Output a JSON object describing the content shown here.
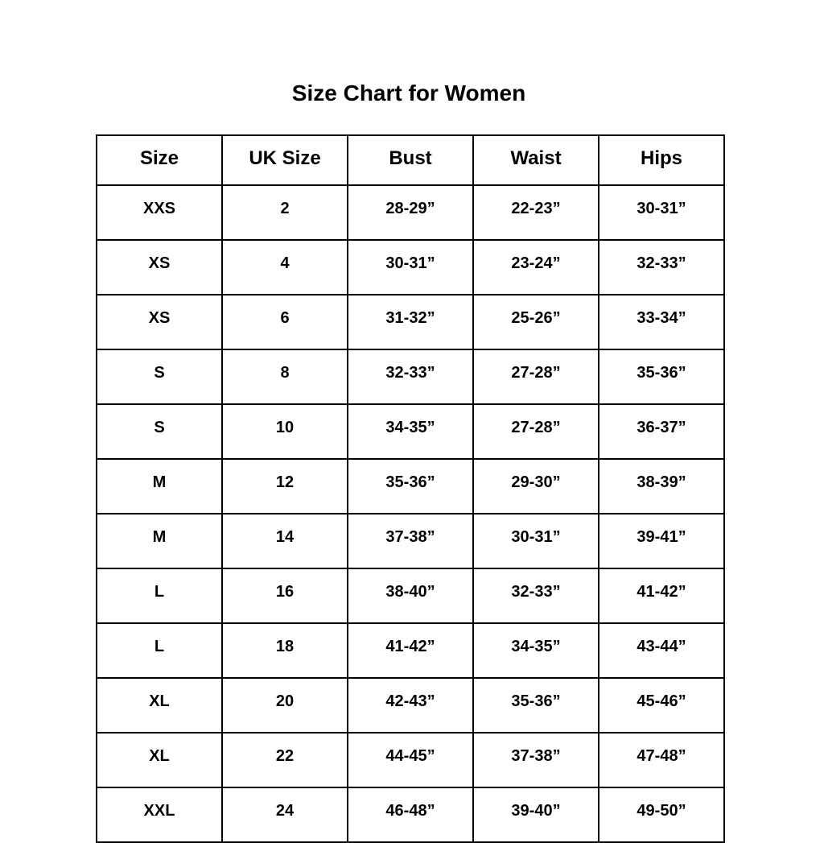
{
  "title": "Size Chart for Women",
  "columns": [
    "Size",
    "UK Size",
    "Bust",
    "Waist",
    "Hips"
  ],
  "rows": [
    [
      "XXS",
      "2",
      "28-29”",
      "22-23”",
      "30-31”"
    ],
    [
      "XS",
      "4",
      "30-31”",
      "23-24”",
      "32-33”"
    ],
    [
      "XS",
      "6",
      "31-32”",
      "25-26”",
      "33-34”"
    ],
    [
      "S",
      "8",
      "32-33”",
      "27-28”",
      "35-36”"
    ],
    [
      "S",
      "10",
      "34-35”",
      "27-28”",
      "36-37”"
    ],
    [
      "M",
      "12",
      "35-36”",
      "29-30”",
      "38-39”"
    ],
    [
      "M",
      "14",
      "37-38”",
      "30-31”",
      "39-41”"
    ],
    [
      "L",
      "16",
      "38-40”",
      "32-33”",
      "41-42”"
    ],
    [
      "L",
      "18",
      "41-42”",
      "34-35”",
      "43-44”"
    ],
    [
      "XL",
      "20",
      "42-43”",
      "35-36”",
      "45-46”"
    ],
    [
      "XL",
      "22",
      "44-45”",
      "37-38”",
      "47-48”"
    ],
    [
      "XXL",
      "24",
      "46-48”",
      "39-40”",
      "49-50”"
    ]
  ]
}
